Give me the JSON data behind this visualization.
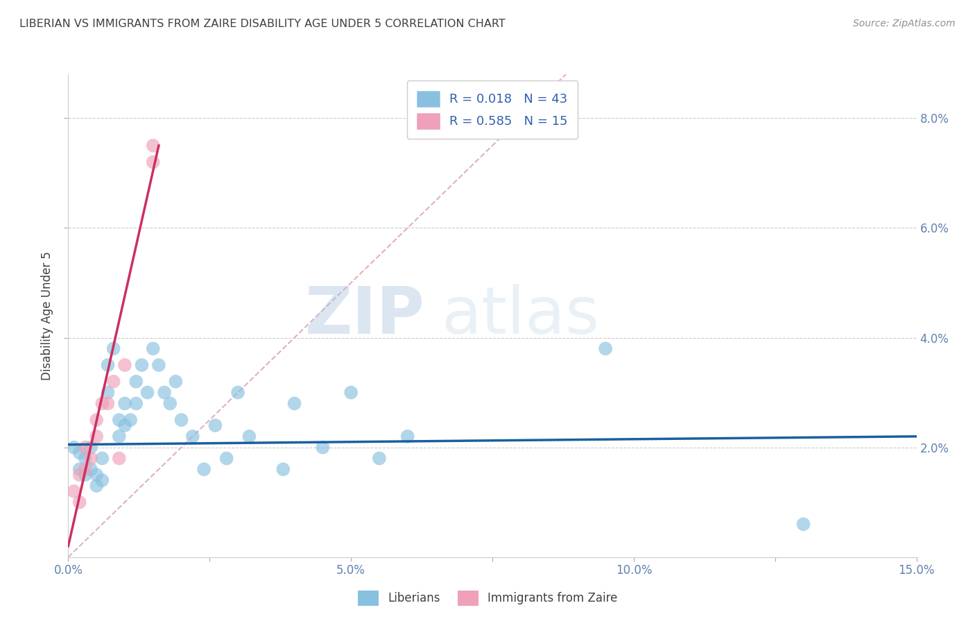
{
  "title": "LIBERIAN VS IMMIGRANTS FROM ZAIRE DISABILITY AGE UNDER 5 CORRELATION CHART",
  "source": "Source: ZipAtlas.com",
  "xlabel_label": "Liberians",
  "ylabel_label": "Disability Age Under 5",
  "xlabel2_label": "Immigrants from Zaire",
  "xlim": [
    0.0,
    0.15
  ],
  "ylim": [
    0.0,
    0.088
  ],
  "xtick_labels": [
    "0.0%",
    "",
    "5.0%",
    "",
    "10.0%",
    "",
    "15.0%"
  ],
  "xtick_vals": [
    0.0,
    0.025,
    0.05,
    0.075,
    0.1,
    0.125,
    0.15
  ],
  "ytick_labels_right": [
    "2.0%",
    "4.0%",
    "6.0%",
    "8.0%"
  ],
  "ytick_vals": [
    0.02,
    0.04,
    0.06,
    0.08
  ],
  "legend_r1": "R = 0.018",
  "legend_n1": "N = 43",
  "legend_r2": "R = 0.585",
  "legend_n2": "N = 15",
  "blue_color": "#88c0e0",
  "pink_color": "#f0a0b8",
  "blue_line_color": "#1a5fa0",
  "pink_line_color": "#cc3060",
  "diag_line_color": "#e0b0c0",
  "legend_text_color": "#3060b0",
  "axis_color": "#6080b0",
  "title_color": "#404040",
  "source_color": "#909090",
  "watermark_color": "#c8d8e8",
  "blue_scatter_x": [
    0.001,
    0.002,
    0.002,
    0.003,
    0.003,
    0.004,
    0.004,
    0.005,
    0.005,
    0.006,
    0.006,
    0.007,
    0.007,
    0.008,
    0.009,
    0.009,
    0.01,
    0.01,
    0.011,
    0.012,
    0.012,
    0.013,
    0.014,
    0.015,
    0.016,
    0.017,
    0.018,
    0.019,
    0.02,
    0.022,
    0.024,
    0.026,
    0.028,
    0.03,
    0.032,
    0.038,
    0.04,
    0.045,
    0.05,
    0.055,
    0.06,
    0.095,
    0.13
  ],
  "blue_scatter_y": [
    0.02,
    0.019,
    0.016,
    0.018,
    0.015,
    0.016,
    0.02,
    0.015,
    0.013,
    0.018,
    0.014,
    0.035,
    0.03,
    0.038,
    0.022,
    0.025,
    0.024,
    0.028,
    0.025,
    0.032,
    0.028,
    0.035,
    0.03,
    0.038,
    0.035,
    0.03,
    0.028,
    0.032,
    0.025,
    0.022,
    0.016,
    0.024,
    0.018,
    0.03,
    0.022,
    0.016,
    0.028,
    0.02,
    0.03,
    0.018,
    0.022,
    0.038,
    0.006
  ],
  "pink_scatter_x": [
    0.001,
    0.002,
    0.002,
    0.003,
    0.003,
    0.004,
    0.005,
    0.005,
    0.006,
    0.007,
    0.008,
    0.009,
    0.01,
    0.015,
    0.015
  ],
  "pink_scatter_y": [
    0.012,
    0.01,
    0.015,
    0.016,
    0.02,
    0.018,
    0.022,
    0.025,
    0.028,
    0.028,
    0.032,
    0.018,
    0.035,
    0.072,
    0.075
  ],
  "blue_trend_x": [
    0.0,
    0.15
  ],
  "blue_trend_y": [
    0.0205,
    0.022
  ],
  "pink_trend_x": [
    0.0,
    0.016
  ],
  "pink_trend_y": [
    0.002,
    0.075
  ],
  "diag_line_x": [
    0.0,
    0.088
  ],
  "diag_line_y": [
    0.0,
    0.088
  ]
}
